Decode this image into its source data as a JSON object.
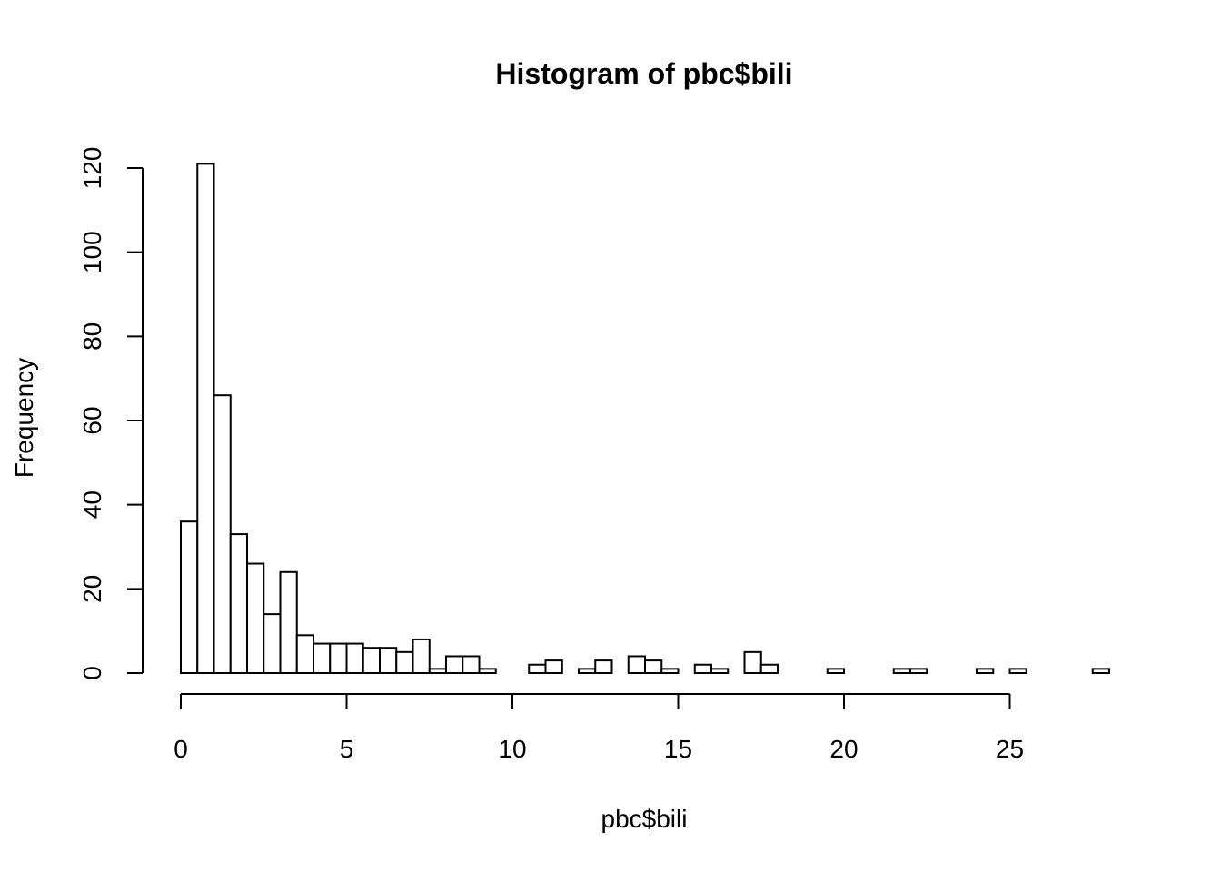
{
  "chart_data": {
    "type": "bar",
    "title": "Histogram of pbc$bili",
    "xlabel": "pbc$bili",
    "ylabel": "Frequency",
    "xlim": [
      0,
      28
    ],
    "ylim": [
      0,
      120
    ],
    "bin_width": 0.5,
    "x_ticks": [
      0,
      5,
      10,
      15,
      20,
      25
    ],
    "y_ticks": [
      0,
      20,
      40,
      60,
      80,
      100,
      120
    ],
    "bin_starts": [
      0,
      0.5,
      1,
      1.5,
      2,
      2.5,
      3,
      3.5,
      4,
      4.5,
      5,
      5.5,
      6,
      6.5,
      7,
      7.5,
      8,
      8.5,
      9,
      9.5,
      10,
      10.5,
      11,
      11.5,
      12,
      12.5,
      13,
      13.5,
      14,
      14.5,
      15,
      15.5,
      16,
      16.5,
      17,
      17.5,
      18,
      18.5,
      19,
      19.5,
      20,
      20.5,
      21,
      21.5,
      22,
      22.5,
      23,
      23.5,
      24,
      24.5,
      25,
      25.5,
      26,
      26.5,
      27,
      27.5
    ],
    "counts": [
      36,
      121,
      66,
      33,
      26,
      14,
      24,
      9,
      7,
      7,
      7,
      6,
      6,
      5,
      8,
      1,
      4,
      4,
      1,
      0,
      0,
      2,
      3,
      0,
      1,
      3,
      0,
      4,
      3,
      1,
      0,
      2,
      1,
      0,
      5,
      2,
      0,
      0,
      0,
      1,
      0,
      0,
      0,
      1,
      1,
      0,
      0,
      0,
      1,
      0,
      1,
      0,
      0,
      0,
      0,
      1
    ],
    "grid": false,
    "legend": "none"
  }
}
